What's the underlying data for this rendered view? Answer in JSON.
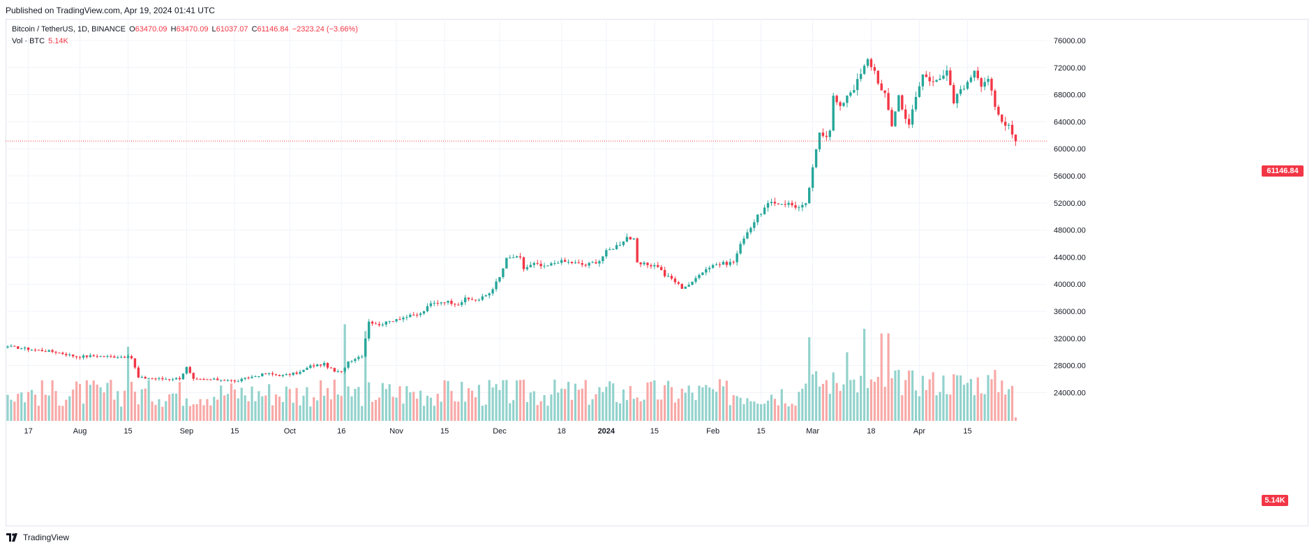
{
  "publish_line": "Published on TradingView.com, Apr 19, 2024 01:41 UTC",
  "brand": "TradingView",
  "legend": {
    "symbol": "Bitcoin / TetherUS, 1D, BINANCE",
    "o_label": "O",
    "o_value": "63470.09",
    "h_label": "H",
    "h_value": "63470.09",
    "l_label": "L",
    "l_value": "61037.07",
    "c_label": "C",
    "c_value": "61146.84",
    "change": "−2323.24 (−3.66%)",
    "vol_label": "Vol · BTC",
    "vol_value": "5.14K"
  },
  "price_badge": "61146.84",
  "vol_badge": "5.14K",
  "colors": {
    "up": "#26a69a",
    "down": "#f23645",
    "vol_up": "#92d2cc",
    "vol_down": "#f7a9a7",
    "grid": "#f0f3fa",
    "axis_text": "#131722"
  },
  "chart_data": {
    "type": "candlestick",
    "y_axis": {
      "min": 22000,
      "max": 78000,
      "ticks": [
        "24000.00",
        "28000.00",
        "32000.00",
        "36000.00",
        "40000.00",
        "44000.00",
        "48000.00",
        "52000.00",
        "56000.00",
        "60000.00",
        "64000.00",
        "68000.00",
        "72000.00",
        "76000.00"
      ]
    },
    "x_axis_labels": [
      {
        "label": "17",
        "bar": 6
      },
      {
        "label": "Aug",
        "bar": 21
      },
      {
        "label": "15",
        "bar": 35
      },
      {
        "label": "Sep",
        "bar": 52
      },
      {
        "label": "15",
        "bar": 66
      },
      {
        "label": "Oct",
        "bar": 82
      },
      {
        "label": "16",
        "bar": 97
      },
      {
        "label": "Nov",
        "bar": 113
      },
      {
        "label": "15",
        "bar": 127
      },
      {
        "label": "Dec",
        "bar": 143
      },
      {
        "label": "18",
        "bar": 161
      },
      {
        "label": "2024",
        "bar": 174
      },
      {
        "label": "15",
        "bar": 188
      },
      {
        "label": "Feb",
        "bar": 205
      },
      {
        "label": "15",
        "bar": 219
      },
      {
        "label": "Mar",
        "bar": 234
      },
      {
        "label": "18",
        "bar": 251
      },
      {
        "label": "Apr",
        "bar": 265
      },
      {
        "label": "15",
        "bar": 279
      }
    ],
    "last_price": 61146.84,
    "keypoints": [
      [
        0,
        30800
      ],
      [
        8,
        30300
      ],
      [
        14,
        30000
      ],
      [
        20,
        29300
      ],
      [
        25,
        29400
      ],
      [
        30,
        29300
      ],
      [
        34,
        29300
      ],
      [
        36,
        29100
      ],
      [
        38,
        26200
      ],
      [
        45,
        26000
      ],
      [
        50,
        26100
      ],
      [
        52,
        27700
      ],
      [
        54,
        25900
      ],
      [
        58,
        25900
      ],
      [
        64,
        25900
      ],
      [
        66,
        25600
      ],
      [
        70,
        26200
      ],
      [
        75,
        26800
      ],
      [
        80,
        26500
      ],
      [
        85,
        27000
      ],
      [
        88,
        27900
      ],
      [
        92,
        28200
      ],
      [
        95,
        27100
      ],
      [
        97,
        27000
      ],
      [
        99,
        28600
      ],
      [
        103,
        29500
      ],
      [
        105,
        34600
      ],
      [
        107,
        34000
      ],
      [
        110,
        34300
      ],
      [
        113,
        34900
      ],
      [
        117,
        35300
      ],
      [
        120,
        35600
      ],
      [
        123,
        37100
      ],
      [
        127,
        37500
      ],
      [
        131,
        37100
      ],
      [
        133,
        37800
      ],
      [
        137,
        37700
      ],
      [
        140,
        38700
      ],
      [
        143,
        41000
      ],
      [
        145,
        43700
      ],
      [
        147,
        44000
      ],
      [
        149,
        43800
      ],
      [
        150,
        42300
      ],
      [
        153,
        43000
      ],
      [
        156,
        42500
      ],
      [
        160,
        43400
      ],
      [
        164,
        43200
      ],
      [
        168,
        42800
      ],
      [
        172,
        43500
      ],
      [
        174,
        44800
      ],
      [
        178,
        46000
      ],
      [
        180,
        47000
      ],
      [
        182,
        46500
      ],
      [
        183,
        43000
      ],
      [
        186,
        42900
      ],
      [
        189,
        42700
      ],
      [
        191,
        41300
      ],
      [
        193,
        40800
      ],
      [
        196,
        39500
      ],
      [
        199,
        40200
      ],
      [
        201,
        41600
      ],
      [
        205,
        42900
      ],
      [
        209,
        43100
      ],
      [
        211,
        43300
      ],
      [
        214,
        47000
      ],
      [
        218,
        50000
      ],
      [
        221,
        51800
      ],
      [
        224,
        52000
      ],
      [
        227,
        51900
      ],
      [
        230,
        51300
      ],
      [
        232,
        51700
      ],
      [
        234,
        57000
      ],
      [
        236,
        62500
      ],
      [
        238,
        62000
      ],
      [
        239,
        63000
      ],
      [
        240,
        67700
      ],
      [
        242,
        66000
      ],
      [
        244,
        68000
      ],
      [
        246,
        69000
      ],
      [
        248,
        71000
      ],
      [
        250,
        73100
      ],
      [
        252,
        71500
      ],
      [
        254,
        68500
      ],
      [
        255,
        67900
      ],
      [
        257,
        63500
      ],
      [
        259,
        67900
      ],
      [
        260,
        65800
      ],
      [
        262,
        63700
      ],
      [
        264,
        67500
      ],
      [
        266,
        71000
      ],
      [
        268,
        70100
      ],
      [
        270,
        70500
      ],
      [
        272,
        70500
      ],
      [
        273,
        71400
      ],
      [
        275,
        66800
      ],
      [
        277,
        68900
      ],
      [
        279,
        69600
      ],
      [
        281,
        71800
      ],
      [
        283,
        69600
      ],
      [
        285,
        70500
      ],
      [
        287,
        66000
      ],
      [
        289,
        64000
      ],
      [
        291,
        63600
      ],
      [
        292,
        62400
      ],
      [
        293,
        61146.84
      ]
    ],
    "highlighted_volume_spikes": [
      35,
      98,
      104,
      233,
      244,
      249,
      254,
      256
    ]
  }
}
